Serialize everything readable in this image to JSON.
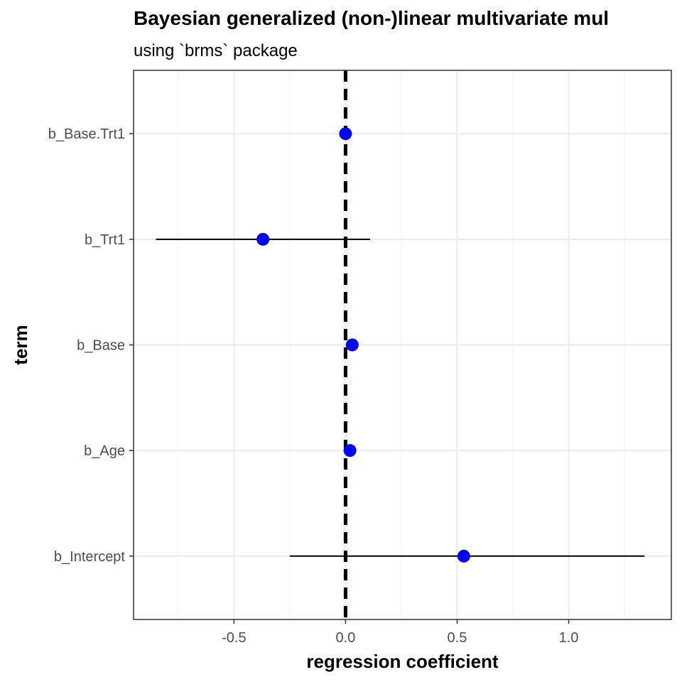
{
  "chart_data": {
    "type": "scatter",
    "title": "Bayesian generalized (non-)linear multivariate mul",
    "subtitle": "using `brms` package",
    "xlabel": "regression coefficient",
    "ylabel": "term",
    "xlim": [
      -0.95,
      1.46
    ],
    "x_ticks": [
      -0.5,
      0.0,
      0.5,
      1.0
    ],
    "x_tick_labels": [
      "-0.5",
      "0.0",
      "0.5",
      "1.0"
    ],
    "categories": [
      "b_Base.Trt1",
      "b_Trt1",
      "b_Base",
      "b_Age",
      "b_Intercept"
    ],
    "estimates": [
      0.0,
      -0.37,
      0.03,
      0.02,
      0.53
    ],
    "conf_low": [
      -0.01,
      -0.85,
      0.01,
      0.0,
      -0.25
    ],
    "conf_high": [
      0.01,
      0.11,
      0.04,
      0.03,
      1.34
    ],
    "reference_line": 0,
    "point_color": "#0000ff",
    "grid": true,
    "legend": "none"
  }
}
